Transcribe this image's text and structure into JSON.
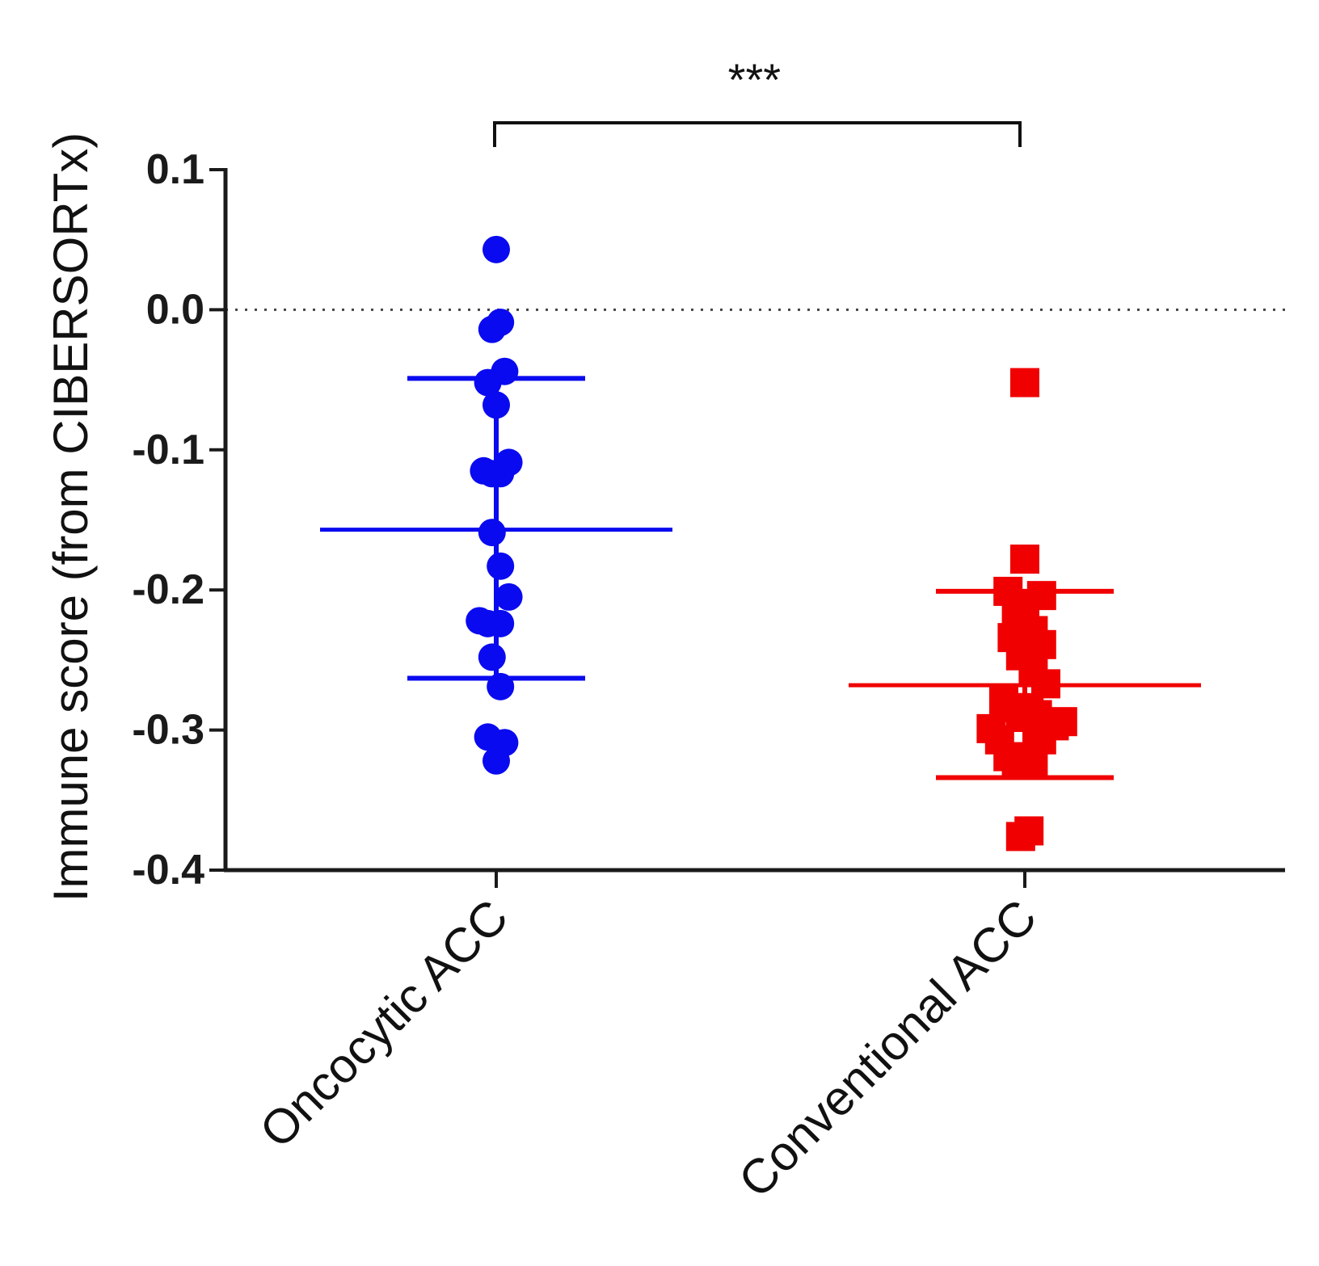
{
  "chart_data": {
    "type": "scatter",
    "title": "",
    "xlabel": "",
    "ylabel": "Immune score (from CIBERSORTx)",
    "ylim": [
      -0.4,
      0.1
    ],
    "yticks": [
      0.1,
      0.0,
      -0.1,
      -0.2,
      -0.3,
      -0.4
    ],
    "ytick_labels": [
      "0.1",
      "0.0",
      "-0.1",
      "-0.2",
      "-0.3",
      "-0.4"
    ],
    "reference_line": 0.0,
    "categories": [
      "Oncocytic ACC",
      "Conventional ACC"
    ],
    "significance": {
      "label": "***",
      "between": [
        "Oncocytic ACC",
        "Conventional ACC"
      ]
    },
    "series": [
      {
        "name": "Oncocytic ACC",
        "marker": "circle",
        "color": "#0a0af0",
        "mean": -0.157,
        "sd_upper": -0.049,
        "sd_lower": -0.263,
        "points": [
          {
            "dx": 0.0,
            "y": 0.043
          },
          {
            "dx": -0.2,
            "y": -0.014
          },
          {
            "dx": 0.2,
            "y": -0.009
          },
          {
            "dx": -0.4,
            "y": -0.052
          },
          {
            "dx": 0.4,
            "y": -0.044
          },
          {
            "dx": 0.0,
            "y": -0.068
          },
          {
            "dx": -0.6,
            "y": -0.115
          },
          {
            "dx": -0.2,
            "y": -0.117
          },
          {
            "dx": 0.2,
            "y": -0.117
          },
          {
            "dx": 0.6,
            "y": -0.109
          },
          {
            "dx": -0.2,
            "y": -0.159
          },
          {
            "dx": 0.2,
            "y": -0.183
          },
          {
            "dx": 0.6,
            "y": -0.205
          },
          {
            "dx": -0.8,
            "y": -0.222
          },
          {
            "dx": -0.4,
            "y": -0.224
          },
          {
            "dx": 0.2,
            "y": -0.224
          },
          {
            "dx": -0.2,
            "y": -0.248
          },
          {
            "dx": 0.2,
            "y": -0.269
          },
          {
            "dx": -0.4,
            "y": -0.305
          },
          {
            "dx": 0.4,
            "y": -0.309
          },
          {
            "dx": 0.0,
            "y": -0.322
          }
        ]
      },
      {
        "name": "Conventional ACC",
        "marker": "square",
        "color": "#f00000",
        "mean": -0.268,
        "sd_upper": -0.201,
        "sd_lower": -0.334,
        "points": [
          {
            "dx": 0.0,
            "y": -0.052
          },
          {
            "dx": 0.0,
            "y": -0.178
          },
          {
            "dx": -0.8,
            "y": -0.201
          },
          {
            "dx": 0.8,
            "y": -0.204
          },
          {
            "dx": -0.4,
            "y": -0.214
          },
          {
            "dx": 0.0,
            "y": -0.224
          },
          {
            "dx": 0.4,
            "y": -0.229
          },
          {
            "dx": -0.6,
            "y": -0.234
          },
          {
            "dx": 0.8,
            "y": -0.239
          },
          {
            "dx": -0.2,
            "y": -0.247
          },
          {
            "dx": 0.4,
            "y": -0.259
          },
          {
            "dx": 1.0,
            "y": -0.267
          },
          {
            "dx": -1.0,
            "y": -0.279
          },
          {
            "dx": -0.6,
            "y": -0.284
          },
          {
            "dx": 0.2,
            "y": -0.284
          },
          {
            "dx": -0.2,
            "y": -0.291
          },
          {
            "dx": 0.6,
            "y": -0.289
          },
          {
            "dx": -1.6,
            "y": -0.299
          },
          {
            "dx": 1.4,
            "y": -0.297
          },
          {
            "dx": 1.8,
            "y": -0.294
          },
          {
            "dx": -1.2,
            "y": -0.307
          },
          {
            "dx": 0.8,
            "y": -0.307
          },
          {
            "dx": -0.8,
            "y": -0.319
          },
          {
            "dx": -0.4,
            "y": -0.324
          },
          {
            "dx": 0.0,
            "y": -0.321
          },
          {
            "dx": 0.4,
            "y": -0.323
          },
          {
            "dx": -0.2,
            "y": -0.376
          },
          {
            "dx": 0.2,
            "y": -0.372
          }
        ]
      }
    ]
  }
}
